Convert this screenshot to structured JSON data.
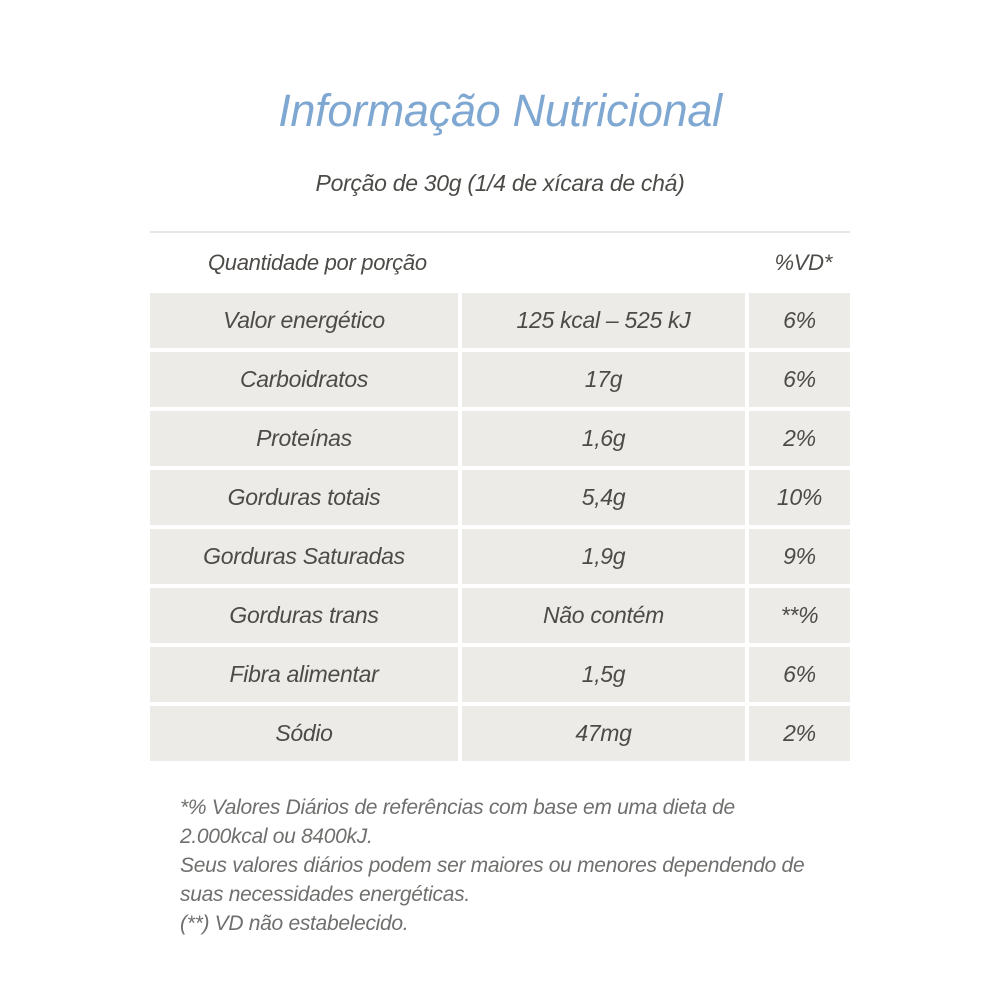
{
  "header": {
    "title": "Informação Nutricional",
    "serving": "Porção de 30g (1/4 de xícara de chá)"
  },
  "table": {
    "header": {
      "quantity": "Quantidade por porção",
      "dv": "%VD*"
    },
    "rows": [
      {
        "nutrient": "Valor energético",
        "amount": "125 kcal – 525 kJ",
        "dv": "6%"
      },
      {
        "nutrient": "Carboidratos",
        "amount": "17g",
        "dv": "6%"
      },
      {
        "nutrient": "Proteínas",
        "amount": "1,6g",
        "dv": "2%"
      },
      {
        "nutrient": "Gorduras totais",
        "amount": "5,4g",
        "dv": "10%"
      },
      {
        "nutrient": "Gorduras Saturadas",
        "amount": "1,9g",
        "dv": "9%"
      },
      {
        "nutrient": "Gorduras trans",
        "amount": "Não contém",
        "dv": "**%"
      },
      {
        "nutrient": "Fibra alimentar",
        "amount": "1,5g",
        "dv": "6%"
      },
      {
        "nutrient": "Sódio",
        "amount": "47mg",
        "dv": "2%"
      }
    ]
  },
  "footnotes": {
    "reference": "*% Valores Diários de referências com base em uma dieta de 2.000kcal ou 8400kJ.",
    "daily_values": "Seus valores diários podem ser maiores ou menores dependendo de suas necessidades energéticas.",
    "not_established": "(**) VD não estabelecido."
  },
  "colors": {
    "title-blue": "#7ea7d2",
    "row-bg": "#ecebe7",
    "text-dark": "#4d4b48",
    "text-footnote": "#706f6d",
    "rule": "#e8e7e5",
    "page-bg": "#ffffff"
  }
}
